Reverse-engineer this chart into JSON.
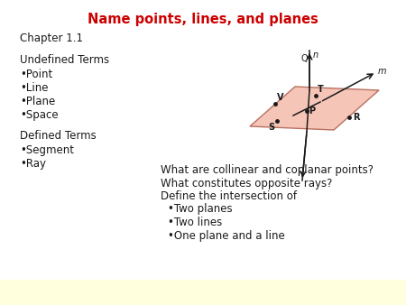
{
  "title": "Name points, lines, and planes",
  "title_color": "#cc0000",
  "bg_color": "#ffffff",
  "bottom_bar_color": "#ffffdd",
  "left_col": {
    "chapter": "Chapter 1.1",
    "undefined_header": "Undefined Terms",
    "undefined_items": [
      "Point",
      "Line",
      "Plane",
      "Space"
    ],
    "defined_header": "Defined Terms",
    "defined_items": [
      "Segment",
      "Ray"
    ]
  },
  "right_col": {
    "lines": [
      "What are collinear and coplanar points?",
      "What constitutes opposite rays?",
      "Define the intersection of",
      "•Two planes",
      "•Two lines",
      "•One plane and a line"
    ]
  },
  "plane_color": "#f5c5b8",
  "plane_edge_color": "#b87060",
  "line_color": "#1a1a1a",
  "point_color": "#1a1a1a",
  "font_color": "#1a1a1a",
  "title_fontsize": 10.5,
  "body_fontsize": 8.5
}
